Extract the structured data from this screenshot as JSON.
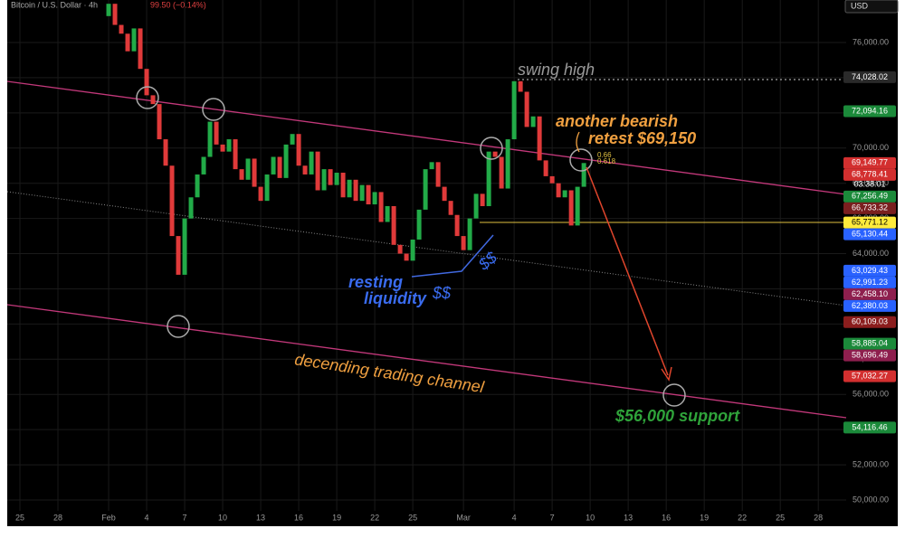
{
  "chart_data": {
    "type": "candlestick",
    "title": "Bitcoin / U.S. Dollar · 4h",
    "change_text": "99.50 (−0.14%)",
    "currency": "USD",
    "colors": {
      "up": "#22ab48",
      "down": "#e03a3a"
    },
    "x": [
      31.5,
      32,
      32.5,
      33,
      33.5,
      34,
      34.5,
      35,
      35.5,
      36,
      36.5,
      37,
      37.5,
      38,
      38.5,
      39,
      39.5,
      40,
      40.5,
      41,
      41.5,
      42,
      42.5,
      43,
      43.5,
      44,
      44.5,
      45,
      45.5,
      46,
      46.5,
      47,
      47.5,
      48,
      48.5,
      49,
      49.5,
      50,
      50.5,
      51,
      51.5,
      52,
      52.5,
      53,
      53.5,
      54,
      54.5,
      55,
      55.5,
      56,
      56.5,
      57,
      57.5,
      58,
      58.5,
      59,
      59.5,
      60,
      60.5,
      61,
      61.5,
      62,
      62.5,
      63,
      63.5,
      64,
      64.5,
      65,
      65.5,
      66,
      66.5,
      67,
      67.5,
      68,
      68.5,
      69,
      69.5
    ],
    "values": [
      77500,
      78200,
      77000,
      76500,
      75500,
      76800,
      74500,
      73000,
      72500,
      70500,
      69000,
      65000,
      62800,
      66000,
      67200,
      68500,
      69500,
      71500,
      70200,
      69800,
      70500,
      68800,
      68200,
      69400,
      67800,
      67000,
      68500,
      69500,
      68300,
      70200,
      70800,
      69000,
      68500,
      69800,
      67600,
      68800,
      67900,
      68600,
      67200,
      68200,
      67000,
      67900,
      66800,
      67500,
      65800,
      66700,
      64500,
      64000,
      63600,
      64800,
      66500,
      68800,
      69200,
      67800,
      67000,
      66200,
      65000,
      64200,
      66000,
      67400,
      66700,
      69800,
      69500,
      67700,
      70500,
      73800,
      73200,
      71200,
      71800,
      69300,
      68400,
      68000,
      67200,
      67600,
      65600,
      67800,
      69150
    ],
    "xlim": [
      24,
      90.2
    ],
    "xticks": [
      {
        "value": 25,
        "label": "25"
      },
      {
        "value": 28,
        "label": "28"
      },
      {
        "value": 32,
        "label": "Feb"
      },
      {
        "value": 35,
        "label": "4"
      },
      {
        "value": 38,
        "label": "7"
      },
      {
        "value": 41,
        "label": "10"
      },
      {
        "value": 44,
        "label": "13"
      },
      {
        "value": 47,
        "label": "16"
      },
      {
        "value": 50,
        "label": "19"
      },
      {
        "value": 53,
        "label": "22"
      },
      {
        "value": 56,
        "label": "25"
      },
      {
        "value": 60,
        "label": "Mar"
      },
      {
        "value": 64,
        "label": "4"
      },
      {
        "value": 67,
        "label": "7"
      },
      {
        "value": 70,
        "label": "10"
      },
      {
        "value": 73,
        "label": "13"
      },
      {
        "value": 76,
        "label": "16"
      },
      {
        "value": 79,
        "label": "19"
      },
      {
        "value": 82,
        "label": "22"
      },
      {
        "value": 85,
        "label": "25"
      },
      {
        "value": 88,
        "label": "28"
      }
    ],
    "ylim": [
      48510,
      78415
    ],
    "yticks": [
      {
        "value": 50000,
        "label": "50,000.00"
      },
      {
        "value": 52000,
        "label": "52,000.00"
      },
      {
        "value": 54000,
        "label": "54,000.00"
      },
      {
        "value": 56000,
        "label": "56,000.00"
      },
      {
        "value": 58000,
        "label": "58,000.00"
      },
      {
        "value": 60000,
        "label": "60,000.00"
      },
      {
        "value": 62000,
        "label": "62,000.00"
      },
      {
        "value": 64000,
        "label": "64,000.00"
      },
      {
        "value": 66000,
        "label": "66,000.00"
      },
      {
        "value": 68000,
        "label": "68,000.00"
      },
      {
        "value": 70000,
        "label": "70,000.00"
      },
      {
        "value": 72000,
        "label": "72,000.00"
      },
      {
        "value": 74000,
        "label": "74,000.00"
      },
      {
        "value": 76000,
        "label": "76,000.00"
      }
    ],
    "price_labels": [
      {
        "value": 74028.02,
        "label": "74,028.02",
        "color": "#2a2a2a"
      },
      {
        "value": 72094.16,
        "label": "72,094.16",
        "color": "#1b8a3a"
      },
      {
        "value": 69149.77,
        "label": "69,149.77",
        "color": "#d32f2f"
      },
      {
        "value": 68778.41,
        "label": "68,778.41",
        "color": "#d32f2f"
      },
      {
        "value": 67256.49,
        "label": "67,256.49",
        "color": "#1b8a3a"
      },
      {
        "value": 66733.32,
        "label": "66,733.32",
        "color": "#7a1f1f"
      },
      {
        "value": 65771.12,
        "label": "65,771.12",
        "color": "#ffeb3b"
      },
      {
        "value": 65130.44,
        "label": "65,130.44",
        "color": "#2962ff"
      },
      {
        "value": 63029.43,
        "label": "63,029.43",
        "color": "#2962ff"
      },
      {
        "value": 62991.23,
        "label": "62,991.23",
        "color": "#2962ff"
      },
      {
        "value": 62458.1,
        "label": "62,458.10",
        "color": "#8e1f4e"
      },
      {
        "value": 62380.03,
        "label": "62,380.03",
        "color": "#2962ff"
      },
      {
        "value": 60109.03,
        "label": "60,109.03",
        "color": "#8b1d1d"
      },
      {
        "value": 58885.04,
        "label": "58,885.04",
        "color": "#1b8a3a"
      },
      {
        "value": 58696.49,
        "label": "58,696.49",
        "color": "#8e1f4e"
      },
      {
        "value": 57032.27,
        "label": "57,032.27",
        "color": "#d32f2f"
      },
      {
        "value": 54116.46,
        "label": "54,116.46",
        "color": "#1b8a3a"
      }
    ],
    "countdown": "03:38:01",
    "annotations": {
      "swing_high": "swing high",
      "bearish_1": "another bearish",
      "bearish_2": "retest $69,150",
      "fib_1": "0.66",
      "fib_2": "0.618",
      "resting_1": "resting",
      "resting_2": "liquidity",
      "dollars_1": "$$",
      "dollars_2": "$$",
      "channel": "decending trading channel",
      "support": "$56,000 support"
    }
  }
}
